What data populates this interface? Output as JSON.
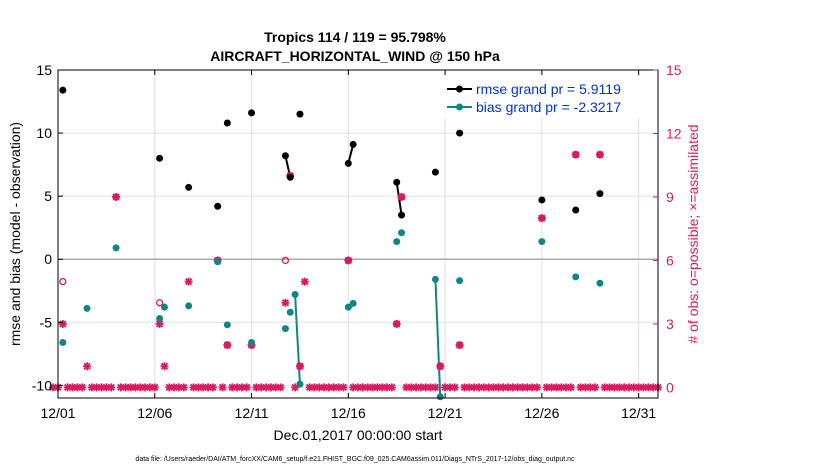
{
  "chart_data": {
    "type": "scatter",
    "title_line1": "Tropics 114 / 119 = 95.798%",
    "title_line2": "AIRCRAFT_HORIZONTAL_WIND @ 150 hPa",
    "xlabel": "Dec.01,2017 00:00:00 start",
    "ylabel_left": "rmse and bias (model - observation)",
    "ylabel_right": "# of obs: o=possible; ×=assimilated",
    "xlim": [
      1,
      32
    ],
    "ylim_left": [
      -11,
      15
    ],
    "ylim_right": [
      -0.5,
      15
    ],
    "x_ticks": [
      1,
      6,
      11,
      16,
      21,
      26,
      31
    ],
    "x_tick_labels": [
      "12/01",
      "12/06",
      "12/11",
      "12/16",
      "12/21",
      "12/26",
      "12/31"
    ],
    "y_ticks_left": [
      -10,
      -5,
      0,
      5,
      10,
      15
    ],
    "y_tick_labels_left": [
      "-10",
      "-5",
      "0",
      "5",
      "10",
      "15"
    ],
    "y_ticks_right": [
      0,
      3,
      6,
      9,
      12,
      15
    ],
    "y_tick_labels_right": [
      "0",
      "3",
      "6",
      "9",
      "12",
      "15"
    ],
    "zero_line": 0,
    "colors": {
      "rmse": "#000000",
      "bias": "#0f8686",
      "obs": "#d81b60",
      "left_axis": "#000000",
      "right_axis": "#d81b60",
      "legend_text": "#0033cc",
      "grid": "#e0e0e0",
      "zero_line": "#aaaaaa"
    },
    "legend": {
      "placement": "top-right",
      "entries": [
        "rmse grand pr = 5.9119",
        "bias grand pr = -2.3217"
      ]
    },
    "series": [
      {
        "name": "rmse",
        "points": [
          [
            1.25,
            13.4
          ],
          [
            6.25,
            8.0
          ],
          [
            7.75,
            5.7
          ],
          [
            9.25,
            4.2
          ],
          [
            9.75,
            10.8
          ],
          [
            11.0,
            11.6
          ],
          [
            12.75,
            8.2
          ],
          [
            13.0,
            6.5
          ],
          [
            13.5,
            11.5
          ],
          [
            16.0,
            7.6
          ],
          [
            16.25,
            9.1
          ],
          [
            18.5,
            6.1
          ],
          [
            18.75,
            3.5
          ],
          [
            20.5,
            6.9
          ],
          [
            21.75,
            10.0
          ],
          [
            26.0,
            4.7
          ],
          [
            27.75,
            3.9
          ],
          [
            29.0,
            5.2
          ]
        ],
        "segments": [
          [
            [
              12.75,
              8.2
            ],
            [
              13.0,
              6.5
            ]
          ],
          [
            [
              16.0,
              7.6
            ],
            [
              16.25,
              9.1
            ]
          ],
          [
            [
              18.5,
              6.1
            ],
            [
              18.75,
              3.5
            ]
          ]
        ]
      },
      {
        "name": "bias",
        "points": [
          [
            1.25,
            -6.6
          ],
          [
            2.5,
            -3.9
          ],
          [
            4.0,
            0.9
          ],
          [
            6.25,
            -4.7
          ],
          [
            6.5,
            -3.8
          ],
          [
            7.75,
            -3.7
          ],
          [
            9.25,
            -0.2
          ],
          [
            9.75,
            -5.2
          ],
          [
            11.0,
            -6.6
          ],
          [
            12.75,
            -5.5
          ],
          [
            13.0,
            -4.2
          ],
          [
            13.25,
            -2.8
          ],
          [
            13.5,
            -9.9
          ],
          [
            16.0,
            -3.8
          ],
          [
            16.25,
            -3.5
          ],
          [
            18.5,
            1.4
          ],
          [
            18.75,
            2.1
          ],
          [
            20.5,
            -1.6
          ],
          [
            20.75,
            -10.9
          ],
          [
            21.75,
            -1.7
          ],
          [
            26.0,
            1.4
          ],
          [
            27.75,
            -1.4
          ],
          [
            29.0,
            -1.9
          ]
        ],
        "segments": [
          [
            [
              13.25,
              -2.8
            ],
            [
              13.5,
              -9.9
            ]
          ],
          [
            [
              20.5,
              -1.6
            ],
            [
              20.75,
              -10.9
            ]
          ]
        ]
      },
      {
        "name": "obs_possible",
        "points": [
          [
            1.25,
            5
          ],
          [
            4.0,
            9
          ],
          [
            6.25,
            4
          ],
          [
            9.25,
            6
          ],
          [
            9.75,
            2
          ],
          [
            11.0,
            2
          ],
          [
            12.75,
            6
          ],
          [
            13.0,
            10
          ],
          [
            13.5,
            1
          ],
          [
            16.0,
            6
          ],
          [
            18.5,
            3
          ],
          [
            18.75,
            9
          ],
          [
            20.75,
            1
          ],
          [
            21.75,
            2
          ],
          [
            26.0,
            8
          ],
          [
            27.75,
            11
          ],
          [
            29.0,
            11
          ]
        ]
      },
      {
        "name": "obs_assimilated",
        "points": [
          [
            1.25,
            3
          ],
          [
            2.5,
            1
          ],
          [
            4.0,
            9
          ],
          [
            6.25,
            3
          ],
          [
            6.5,
            1
          ],
          [
            7.75,
            5
          ],
          [
            9.25,
            6
          ],
          [
            9.75,
            2
          ],
          [
            11.0,
            2
          ],
          [
            12.75,
            4
          ],
          [
            13.0,
            10
          ],
          [
            13.5,
            1
          ],
          [
            13.75,
            5
          ],
          [
            16.0,
            6
          ],
          [
            18.5,
            3
          ],
          [
            18.75,
            9
          ],
          [
            20.75,
            1
          ],
          [
            21.75,
            2
          ],
          [
            26.0,
            8
          ],
          [
            27.75,
            11
          ],
          [
            29.0,
            11
          ]
        ],
        "zero_range": [
          0.75,
          32.0
        ],
        "zero_step": 0.25
      }
    ]
  },
  "footer": {
    "data_file": "data file: /Users/raeder/DAI/ATM_forcXX/CAM6_setup/f.e21.FHIST_BGC.f09_025.CAM6assim.011/Diags_NTrS_2017-12/obs_diag_output.nc"
  }
}
